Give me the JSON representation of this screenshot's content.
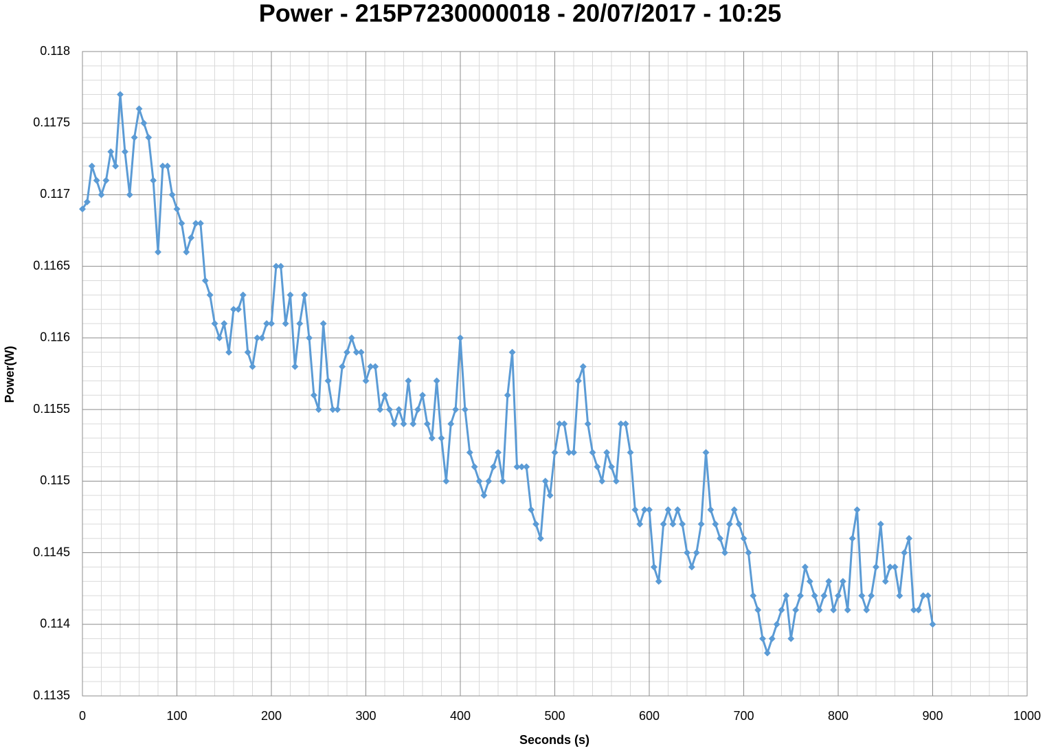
{
  "chart_data": {
    "type": "line",
    "title": "Power - 215P7230000018 - 20/07/2017 - 10:25",
    "x_label": "Seconds (s)",
    "y_label": "Power(W)",
    "x": [
      0,
      5,
      10,
      15,
      20,
      25,
      30,
      35,
      40,
      45,
      50,
      55,
      60,
      65,
      70,
      75,
      80,
      85,
      90,
      95,
      100,
      105,
      110,
      115,
      120,
      125,
      130,
      135,
      140,
      145,
      150,
      155,
      160,
      165,
      170,
      175,
      180,
      185,
      190,
      195,
      200,
      205,
      210,
      215,
      220,
      225,
      230,
      235,
      240,
      245,
      250,
      255,
      260,
      265,
      270,
      275,
      280,
      285,
      290,
      295,
      300,
      305,
      310,
      315,
      320,
      325,
      330,
      335,
      340,
      345,
      350,
      355,
      360,
      365,
      370,
      375,
      380,
      385,
      390,
      395,
      400,
      405,
      410,
      415,
      420,
      425,
      430,
      435,
      440,
      445,
      450,
      455,
      460,
      465,
      470,
      475,
      480,
      485,
      490,
      495,
      500,
      505,
      510,
      515,
      520,
      525,
      530,
      535,
      540,
      545,
      550,
      555,
      560,
      565,
      570,
      575,
      580,
      585,
      590,
      595,
      600,
      605,
      610,
      615,
      620,
      625,
      630,
      635,
      640,
      645,
      650,
      655,
      660,
      665,
      670,
      675,
      680,
      685,
      690,
      695,
      700,
      705,
      710,
      715,
      720,
      725,
      730,
      735,
      740,
      745,
      750,
      755,
      760,
      765,
      770,
      775,
      780,
      785,
      790,
      795,
      800,
      805,
      810,
      815,
      820,
      825,
      830,
      835,
      840,
      845,
      850,
      855,
      860,
      865,
      870,
      875,
      880,
      885,
      890,
      895,
      900
    ],
    "series": [
      {
        "color": "#5b9bd5",
        "values": [
          0.1169,
          0.11695,
          0.1172,
          0.1171,
          0.117,
          0.1171,
          0.1173,
          0.1172,
          0.1177,
          0.1173,
          0.117,
          0.1174,
          0.1176,
          0.1175,
          0.1174,
          0.1171,
          0.1166,
          0.1172,
          0.1172,
          0.117,
          0.1169,
          0.1168,
          0.1166,
          0.1167,
          0.1168,
          0.1168,
          0.1164,
          0.1163,
          0.1161,
          0.116,
          0.1161,
          0.1159,
          0.1162,
          0.1162,
          0.1163,
          0.1159,
          0.1158,
          0.116,
          0.116,
          0.1161,
          0.1161,
          0.1165,
          0.1165,
          0.1161,
          0.1163,
          0.1158,
          0.1161,
          0.1163,
          0.116,
          0.1156,
          0.1155,
          0.1161,
          0.1157,
          0.1155,
          0.1155,
          0.1158,
          0.1159,
          0.116,
          0.1159,
          0.1159,
          0.1157,
          0.1158,
          0.1158,
          0.1155,
          0.1156,
          0.1155,
          0.1154,
          0.1155,
          0.1154,
          0.1157,
          0.1154,
          0.1155,
          0.1156,
          0.1154,
          0.1153,
          0.1157,
          0.1153,
          0.115,
          0.1154,
          0.1155,
          0.116,
          0.1155,
          0.1152,
          0.1151,
          0.115,
          0.1149,
          0.115,
          0.1151,
          0.1152,
          0.115,
          0.1156,
          0.1159,
          0.1151,
          0.1151,
          0.1151,
          0.1148,
          0.1147,
          0.1146,
          0.115,
          0.1149,
          0.1152,
          0.1154,
          0.1154,
          0.1152,
          0.1152,
          0.1157,
          0.1158,
          0.1154,
          0.1152,
          0.1151,
          0.115,
          0.1152,
          0.1151,
          0.115,
          0.1154,
          0.1154,
          0.1152,
          0.1148,
          0.1147,
          0.1148,
          0.1148,
          0.1144,
          0.1143,
          0.1147,
          0.1148,
          0.1147,
          0.1148,
          0.1147,
          0.1145,
          0.1144,
          0.1145,
          0.1147,
          0.1152,
          0.1148,
          0.1147,
          0.1146,
          0.1145,
          0.1147,
          0.1148,
          0.1147,
          0.1146,
          0.1145,
          0.1142,
          0.1141,
          0.1139,
          0.1138,
          0.1139,
          0.114,
          0.1141,
          0.1142,
          0.1139,
          0.1141,
          0.1142,
          0.1144,
          0.1143,
          0.1142,
          0.1141,
          0.1142,
          0.1143,
          0.1141,
          0.1142,
          0.1143,
          0.1141,
          0.1146,
          0.1148,
          0.1142,
          0.1141,
          0.1142,
          0.1144,
          0.1147,
          0.1143,
          0.1144,
          0.1144,
          0.1142,
          0.1145,
          0.1146,
          0.1141,
          0.1141,
          0.1142,
          0.1142,
          0.114
        ]
      }
    ],
    "xlim": [
      0,
      1000
    ],
    "xticks": [
      0,
      100,
      200,
      300,
      400,
      500,
      600,
      700,
      800,
      900,
      1000
    ],
    "ylim": [
      0.1135,
      0.118
    ],
    "yticks": [
      0.1135,
      0.114,
      0.1145,
      0.115,
      0.1155,
      0.116,
      0.1165,
      0.117,
      0.1175,
      0.118
    ],
    "grid": true
  }
}
